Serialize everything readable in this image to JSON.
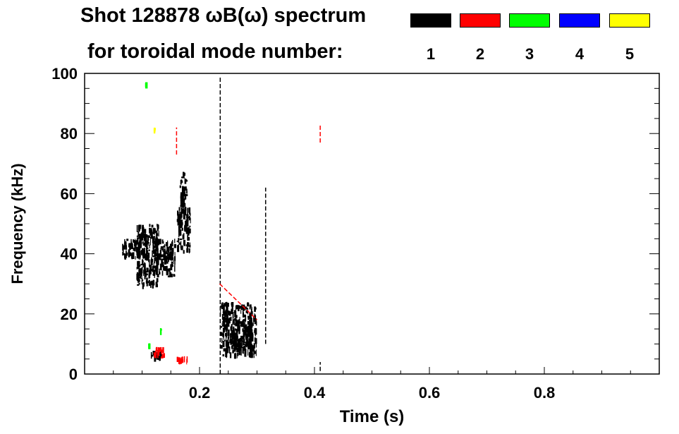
{
  "title_line1": "Shot 128878 ωB(ω) spectrum",
  "title_line2": "for toroidal mode number:",
  "legend": [
    {
      "mode": "1",
      "color": "#000000"
    },
    {
      "mode": "2",
      "color": "#ff0000"
    },
    {
      "mode": "3",
      "color": "#00ff00"
    },
    {
      "mode": "4",
      "color": "#0000ff"
    },
    {
      "mode": "5",
      "color": "#ffff00"
    }
  ],
  "chart_data": {
    "type": "heatmap",
    "xlabel": "Time (s)",
    "ylabel": "Frequency (kHz)",
    "xlim": [
      0,
      1.0
    ],
    "ylim": [
      0,
      100
    ],
    "xticks": [
      0.2,
      0.4,
      0.6,
      0.8
    ],
    "yticks": [
      0,
      20,
      40,
      60,
      80,
      100
    ],
    "grid": false,
    "legend_position": "top-right",
    "series": [
      {
        "mode": 1,
        "color": "#000000",
        "regions": [
          {
            "t0": 0.065,
            "t1": 0.115,
            "f0": 38,
            "f1": 45
          },
          {
            "t0": 0.09,
            "t1": 0.13,
            "f0": 28,
            "f1": 50
          },
          {
            "t0": 0.12,
            "t1": 0.16,
            "f0": 32,
            "f1": 45
          },
          {
            "t0": 0.16,
            "t1": 0.185,
            "f0": 40,
            "f1": 56
          },
          {
            "t0": 0.165,
            "t1": 0.18,
            "f0": 55,
            "f1": 68
          },
          {
            "t0": 0.235,
            "t1": 0.3,
            "f0": 5,
            "f1": 24
          },
          {
            "t0": 0.255,
            "t1": 0.295,
            "f0": 8,
            "f1": 18
          },
          {
            "t0": 0.115,
            "t1": 0.135,
            "f0": 4,
            "f1": 8
          }
        ],
        "lines": [
          {
            "t": 0.236,
            "f0": 0,
            "f1": 99
          },
          {
            "t": 0.41,
            "f0": 1,
            "f1": 4
          },
          {
            "t": 0.315,
            "f0": 10,
            "f1": 62
          }
        ]
      },
      {
        "mode": 2,
        "color": "#ff0000",
        "regions": [
          {
            "t0": 0.12,
            "t1": 0.14,
            "f0": 5,
            "f1": 9
          },
          {
            "t0": 0.16,
            "t1": 0.18,
            "f0": 3,
            "f1": 6
          }
        ],
        "lines": [
          {
            "t0": 0.235,
            "f0": 30,
            "t1": 0.3,
            "f1": 18
          },
          {
            "t": 0.41,
            "f0": 77,
            "f1": 83
          },
          {
            "t": 0.16,
            "f0": 73,
            "f1": 82
          }
        ]
      },
      {
        "mode": 3,
        "color": "#00ff00",
        "regions": [
          {
            "t0": 0.105,
            "t1": 0.11,
            "f0": 95,
            "f1": 97
          },
          {
            "t0": 0.13,
            "t1": 0.135,
            "f0": 14,
            "f1": 15
          },
          {
            "t0": 0.11,
            "t1": 0.115,
            "f0": 9,
            "f1": 10
          }
        ],
        "lines": []
      },
      {
        "mode": 4,
        "color": "#0000ff",
        "regions": [],
        "lines": []
      },
      {
        "mode": 5,
        "color": "#ffff00",
        "regions": [
          {
            "t0": 0.12,
            "t1": 0.124,
            "f0": 80,
            "f1": 82
          }
        ],
        "lines": []
      }
    ]
  }
}
